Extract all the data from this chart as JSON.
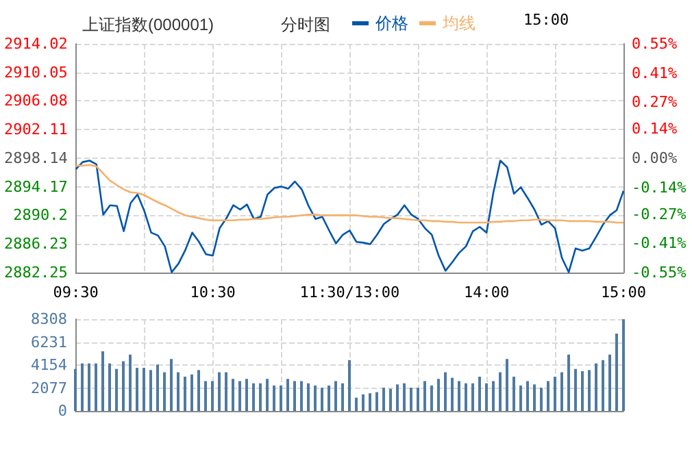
{
  "chart_data": [
    {
      "type": "line",
      "title": "上证指数(000001)",
      "subtitle": "分时图",
      "annotations": [
        "15:00"
      ],
      "legend": "top",
      "grid": true,
      "categories": [
        "09:30",
        null,
        null,
        null,
        null,
        null,
        null,
        null,
        null,
        null,
        null,
        null,
        null,
        null,
        null,
        null,
        null,
        null,
        null,
        null,
        "10:30",
        null,
        null,
        null,
        null,
        null,
        null,
        null,
        null,
        null,
        null,
        null,
        null,
        null,
        null,
        null,
        null,
        null,
        null,
        null,
        "11:30/13:00",
        null,
        null,
        null,
        null,
        null,
        null,
        null,
        null,
        null,
        null,
        null,
        null,
        null,
        null,
        null,
        null,
        null,
        null,
        null,
        "14:00",
        null,
        null,
        null,
        null,
        null,
        null,
        null,
        null,
        null,
        null,
        null,
        null,
        null,
        null,
        null,
        null,
        null,
        null,
        null,
        "15:00"
      ],
      "series": [
        {
          "name": "价格",
          "color": "#0055aa",
          "values": [
            2896.6,
            2897.6,
            2897.8,
            2897.3,
            2890.3,
            2891.6,
            2891.5,
            2888.0,
            2891.9,
            2893.1,
            2890.8,
            2887.8,
            2887.4,
            2885.9,
            2882.3,
            2883.5,
            2885.4,
            2887.8,
            2886.5,
            2884.8,
            2884.6,
            2888.4,
            2889.8,
            2891.6,
            2891.0,
            2891.7,
            2889.7,
            2890.0,
            2893.1,
            2894.0,
            2894.2,
            2893.9,
            2894.9,
            2893.8,
            2891.5,
            2889.7,
            2890.0,
            2888.1,
            2886.3,
            2887.5,
            2888.1,
            2886.5,
            2886.4,
            2886.2,
            2887.5,
            2889.0,
            2889.7,
            2890.3,
            2891.6,
            2890.3,
            2889.7,
            2888.4,
            2887.5,
            2884.6,
            2882.5,
            2883.7,
            2885.0,
            2885.9,
            2888.0,
            2888.6,
            2887.8,
            2893.4,
            2897.8,
            2896.9,
            2893.2,
            2894.1,
            2892.6,
            2891.0,
            2888.9,
            2889.4,
            2888.4,
            2884.3,
            2882.3,
            2885.6,
            2885.3,
            2885.6,
            2887.2,
            2888.9,
            2890.2,
            2890.9,
            2893.6
          ]
        },
        {
          "name": "均线",
          "color": "#f5b06a",
          "values": [
            2897.1,
            2897.1,
            2897.2,
            2897.0,
            2896.0,
            2895.0,
            2894.4,
            2893.8,
            2893.4,
            2893.3,
            2893.0,
            2892.5,
            2892.0,
            2891.6,
            2891.1,
            2890.6,
            2890.2,
            2890.0,
            2889.8,
            2889.6,
            2889.5,
            2889.5,
            2889.5,
            2889.5,
            2889.6,
            2889.6,
            2889.7,
            2889.7,
            2889.8,
            2889.9,
            2890.0,
            2890.0,
            2890.1,
            2890.2,
            2890.3,
            2890.3,
            2890.2,
            2890.2,
            2890.2,
            2890.2,
            2890.2,
            2890.2,
            2890.1,
            2890.0,
            2890.0,
            2889.9,
            2889.8,
            2889.8,
            2889.7,
            2889.6,
            2889.5,
            2889.5,
            2889.4,
            2889.4,
            2889.3,
            2889.3,
            2889.2,
            2889.2,
            2889.2,
            2889.2,
            2889.2,
            2889.3,
            2889.3,
            2889.4,
            2889.4,
            2889.5,
            2889.5,
            2889.6,
            2889.6,
            2889.5,
            2889.5,
            2889.5,
            2889.4,
            2889.4,
            2889.4,
            2889.4,
            2889.3,
            2889.3,
            2889.3,
            2889.2,
            2889.2
          ]
        }
      ],
      "ylim": [
        2882.25,
        2914.02
      ],
      "yticks": [
        2882.25,
        2886.23,
        2890.2,
        2894.17,
        2898.14,
        2902.11,
        2906.08,
        2910.05,
        2914.02
      ],
      "y2lim": [
        -0.55,
        0.55
      ],
      "y2ticks": [
        {
          "value": -0.55,
          "label": "-0.55%"
        },
        {
          "value": -0.41,
          "label": "-0.41%"
        },
        {
          "value": -0.27,
          "label": "-0.27%"
        },
        {
          "value": -0.14,
          "label": "-0.14%"
        },
        {
          "value": 0,
          "label": "0.00%"
        },
        {
          "value": 0.14,
          "label": "0.14%"
        },
        {
          "value": 0.27,
          "label": "0.27%"
        },
        {
          "value": 0.41,
          "label": "0.41%"
        },
        {
          "value": 0.55,
          "label": "0.55%"
        }
      ]
    },
    {
      "type": "bar",
      "grid": true,
      "tick_labels": "y",
      "color": "#4f7aa3",
      "categories": [
        null,
        null,
        null,
        null,
        null,
        null,
        null,
        null,
        null,
        null,
        null,
        null,
        null,
        null,
        null,
        null,
        null,
        null,
        null,
        null,
        null,
        null,
        null,
        null,
        null,
        null,
        null,
        null,
        null,
        null,
        null,
        null,
        null,
        null,
        null,
        null,
        null,
        null,
        null,
        null,
        null,
        null,
        null,
        null,
        null,
        null,
        null,
        null,
        null,
        null,
        null,
        null,
        null,
        null,
        null,
        null,
        null,
        null,
        null,
        null,
        null,
        null,
        null,
        null,
        null,
        null,
        null,
        null,
        null,
        null,
        null,
        null,
        null,
        null,
        null,
        null,
        null,
        null,
        null,
        null,
        null
      ],
      "values": [
        3800,
        4300,
        4300,
        4300,
        5400,
        4300,
        3800,
        4500,
        5100,
        3900,
        3900,
        3700,
        4200,
        3500,
        4700,
        3500,
        3100,
        3300,
        3700,
        2700,
        2700,
        3500,
        3500,
        2900,
        2700,
        2900,
        2500,
        2500,
        2900,
        2300,
        2300,
        2900,
        2700,
        2700,
        2500,
        2300,
        2100,
        2300,
        2700,
        2500,
        4600,
        1200,
        1500,
        1600,
        1700,
        2100,
        2000,
        2400,
        2500,
        2100,
        2100,
        2700,
        2300,
        2900,
        3500,
        3000,
        2700,
        2500,
        2500,
        3100,
        2500,
        2700,
        3500,
        4700,
        3100,
        2300,
        2700,
        2400,
        2100,
        2700,
        3100,
        3500,
        5100,
        3800,
        3600,
        3700,
        4300,
        4600,
        5100,
        7000,
        8300
      ],
      "ylim": [
        0,
        8308
      ],
      "yticks": [
        0,
        2077,
        4154,
        6231,
        8308
      ]
    }
  ]
}
